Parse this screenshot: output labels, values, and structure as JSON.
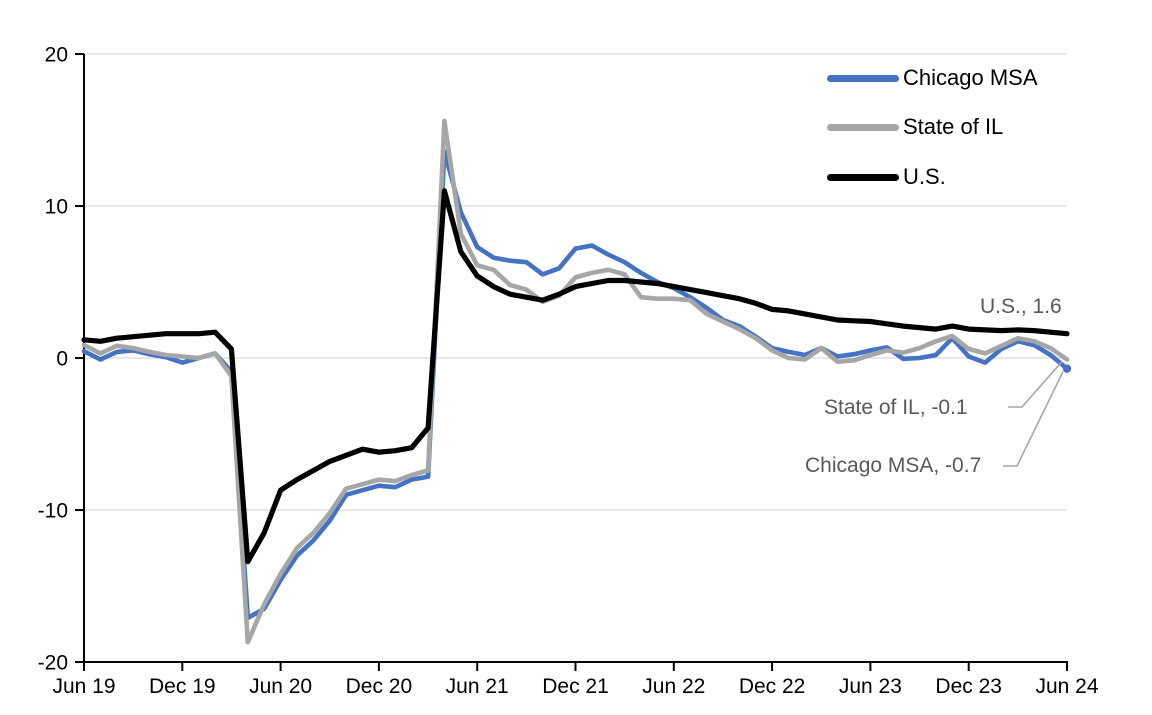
{
  "chart_data": {
    "type": "line",
    "title": "",
    "xlabel": "",
    "ylabel": "",
    "ylim": [
      -20,
      20
    ],
    "ytick_step": 10,
    "grid": true,
    "legend_position": "top-right",
    "x_tick_every": 6,
    "x": [
      "Jun 19",
      "Jul 19",
      "Aug 19",
      "Sep 19",
      "Oct 19",
      "Nov 19",
      "Dec 19",
      "Jan 20",
      "Feb 20",
      "Mar 20",
      "Apr 20",
      "May 20",
      "Jun 20",
      "Jul 20",
      "Aug 20",
      "Sep 20",
      "Oct 20",
      "Nov 20",
      "Dec 20",
      "Jan 21",
      "Feb 21",
      "Mar 21",
      "Apr 21",
      "May 21",
      "Jun 21",
      "Jul 21",
      "Aug 21",
      "Sep 21",
      "Oct 21",
      "Nov 21",
      "Dec 21",
      "Jan 22",
      "Feb 22",
      "Mar 22",
      "Apr 22",
      "May 22",
      "Jun 22",
      "Jul 22",
      "Aug 22",
      "Sep 22",
      "Oct 22",
      "Nov 22",
      "Dec 22",
      "Jan 23",
      "Feb 23",
      "Mar 23",
      "Apr 23",
      "May 23",
      "Jun 23",
      "Jul 23",
      "Aug 23",
      "Sep 23",
      "Oct 23",
      "Nov 23",
      "Dec 23",
      "Jan 24",
      "Feb 24",
      "Mar 24",
      "Apr 24",
      "May 24",
      "Jun 24"
    ],
    "series": [
      {
        "name": "Chicago MSA",
        "color": "#4472C4",
        "width": 4.6,
        "end_marker": true,
        "values": [
          0.45,
          -0.1,
          0.4,
          0.5,
          0.25,
          0.05,
          -0.3,
          0.0,
          0.3,
          -0.9,
          -17.1,
          -16.5,
          -14.6,
          -13.0,
          -12.0,
          -10.7,
          -9.0,
          -8.7,
          -8.4,
          -8.5,
          -8.0,
          -7.8,
          13.6,
          9.6,
          7.3,
          6.6,
          6.4,
          6.3,
          5.5,
          5.9,
          7.2,
          7.4,
          6.8,
          6.3,
          5.6,
          5.0,
          4.6,
          4.0,
          3.3,
          2.5,
          2.1,
          1.4,
          0.65,
          0.4,
          0.2,
          0.65,
          0.1,
          0.25,
          0.5,
          0.7,
          -0.05,
          0.0,
          0.2,
          1.3,
          0.1,
          -0.3,
          0.6,
          1.1,
          0.85,
          0.2,
          -0.7
        ]
      },
      {
        "name": "State of IL",
        "color": "#A6A6A6",
        "width": 4.6,
        "end_marker": false,
        "values": [
          0.85,
          0.3,
          0.8,
          0.65,
          0.4,
          0.2,
          0.1,
          0.0,
          0.3,
          -1.2,
          -18.7,
          -16.2,
          -14.2,
          -12.5,
          -11.5,
          -10.2,
          -8.6,
          -8.3,
          -8.0,
          -8.1,
          -7.7,
          -7.4,
          15.6,
          8.2,
          6.1,
          5.8,
          4.8,
          4.5,
          3.7,
          4.1,
          5.3,
          5.6,
          5.8,
          5.5,
          4.0,
          3.9,
          3.9,
          3.8,
          2.9,
          2.4,
          1.9,
          1.3,
          0.5,
          0.0,
          -0.1,
          0.65,
          -0.25,
          -0.15,
          0.2,
          0.5,
          0.35,
          0.65,
          1.1,
          1.45,
          0.6,
          0.3,
          0.8,
          1.3,
          1.1,
          0.65,
          -0.1
        ]
      },
      {
        "name": "U.S.",
        "color": "#000000",
        "width": 5.2,
        "end_marker": false,
        "values": [
          1.2,
          1.1,
          1.3,
          1.4,
          1.5,
          1.6,
          1.6,
          1.6,
          1.7,
          0.6,
          -13.4,
          -11.5,
          -8.7,
          -8.0,
          -7.4,
          -6.8,
          -6.4,
          -6.0,
          -6.2,
          -6.1,
          -5.9,
          -4.6,
          11.0,
          7.0,
          5.4,
          4.7,
          4.2,
          4.0,
          3.8,
          4.2,
          4.7,
          4.9,
          5.1,
          5.1,
          5.0,
          4.9,
          4.7,
          4.5,
          4.3,
          4.1,
          3.9,
          3.6,
          3.2,
          3.1,
          2.9,
          2.7,
          2.5,
          2.45,
          2.4,
          2.25,
          2.1,
          2.0,
          1.9,
          2.1,
          1.9,
          1.85,
          1.8,
          1.85,
          1.8,
          1.7,
          1.6
        ]
      }
    ],
    "colors": {
      "grid": "#D9D9D9",
      "axis": "#000000",
      "leader": "#A6A6A6",
      "end_label": "#595959"
    }
  },
  "annotations": {
    "us": {
      "text": "U.S., 1.6"
    },
    "il": {
      "text": "State of IL, -0.1"
    },
    "chi": {
      "text": "Chicago MSA, -0.7"
    }
  }
}
